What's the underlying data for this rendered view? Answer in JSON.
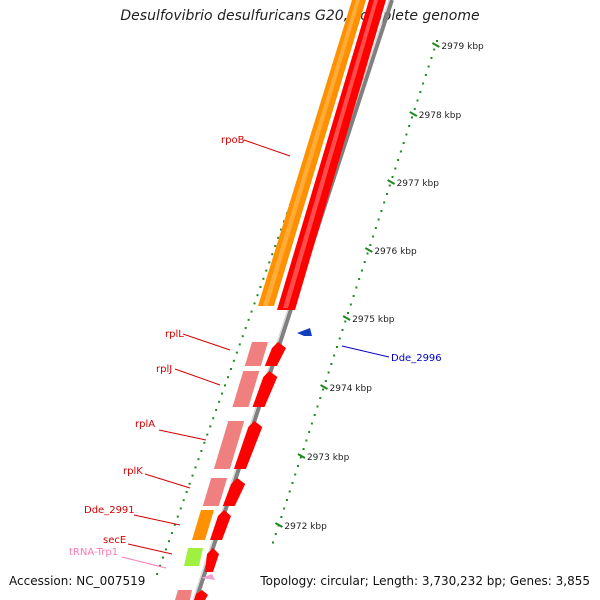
{
  "title": "Desulfovibrio desulfuricans G20, complete genome",
  "footer": {
    "accession": "Accession: NC_007519",
    "topology": "Topology: circular; Length: 3,730,232 bp; Genes: 3,855"
  },
  "colors": {
    "tick": "#1f8a1f",
    "cds_red": "#ff0000",
    "cds_orange": "#ff9000",
    "cds_pink": "#f08080",
    "trna_green": "#a0f040",
    "gene_label_red": "#d40000",
    "gene_label_blue": "#0000c8",
    "trna_label": "#ff78b4",
    "backbone": "#808080"
  },
  "kbp_labels": [
    "2979 kbp",
    "2978 kbp",
    "2977 kbp",
    "2976 kbp",
    "2975 kbp",
    "2974 kbp",
    "2973 kbp",
    "2972 kbp"
  ],
  "gene_labels": [
    {
      "text": "rpoB",
      "kind": "cds"
    },
    {
      "text": "rplL",
      "kind": "cds"
    },
    {
      "text": "rplJ",
      "kind": "cds"
    },
    {
      "text": "rplA",
      "kind": "cds"
    },
    {
      "text": "rplK",
      "kind": "cds"
    },
    {
      "text": "Dde_2991",
      "kind": "cds"
    },
    {
      "text": "secE",
      "kind": "cds"
    },
    {
      "text": "tRNA-Trp1",
      "kind": "trna"
    },
    {
      "text": "Dde_2996",
      "kind": "cds_minus"
    }
  ]
}
